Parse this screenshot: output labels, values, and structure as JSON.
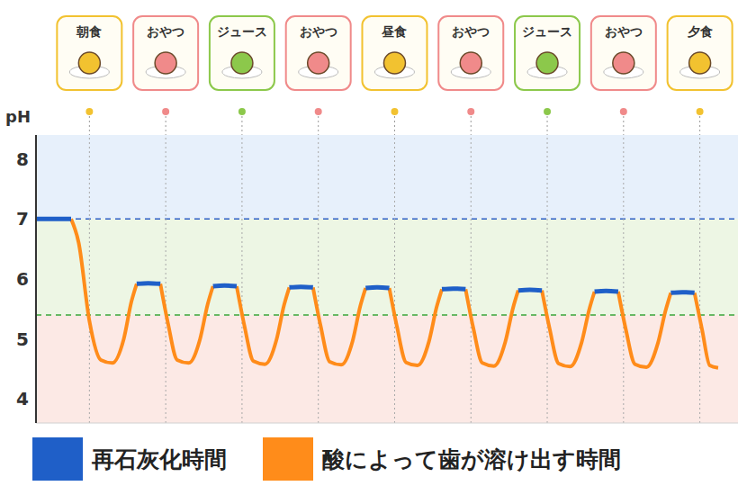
{
  "chart_data": {
    "type": "line",
    "y_label": "pH",
    "x": [
      0.3,
      0.5,
      0.76,
      0.86,
      1.0,
      1.15,
      1.3,
      1.45,
      1.55,
      1.62,
      1.77,
      1.93,
      2.03,
      2.15,
      2.3,
      2.45,
      2.55,
      2.62,
      2.77,
      2.93,
      3.03,
      3.15,
      3.3,
      3.45,
      3.55,
      3.62,
      3.77,
      3.93,
      4.03,
      4.15,
      4.3,
      4.45,
      4.55,
      4.62,
      4.77,
      4.93,
      5.03,
      5.15,
      5.3,
      5.45,
      5.55,
      5.62,
      5.77,
      5.93,
      6.03,
      6.15,
      6.3,
      6.45,
      6.55,
      6.62,
      6.77,
      6.93,
      7.03,
      7.15,
      7.3,
      7.45,
      7.55,
      7.62,
      7.77,
      7.93,
      8.03,
      8.15,
      8.3,
      8.45,
      8.55,
      8.62,
      8.77,
      8.93,
      9.03,
      9.13,
      9.24
    ],
    "xlim": [
      0.3,
      9.5
    ],
    "xticks": [],
    "ylim": [
      3.6,
      8.4
    ],
    "yticks": [
      4,
      5,
      6,
      7,
      8
    ],
    "tick_labels": "y",
    "grid": false,
    "series": [
      {
        "name": "再石灰化時間",
        "color": "#1f5fc8",
        "values": [
          7.0,
          7.0,
          7.0,
          null,
          null,
          null,
          null,
          null,
          null,
          5.92,
          5.93,
          5.92,
          null,
          null,
          null,
          null,
          null,
          5.88,
          5.89,
          5.88,
          null,
          null,
          null,
          null,
          null,
          5.86,
          5.87,
          5.86,
          null,
          null,
          null,
          null,
          null,
          5.85,
          5.86,
          5.85,
          null,
          null,
          null,
          null,
          null,
          5.83,
          5.84,
          5.83,
          null,
          null,
          null,
          null,
          null,
          5.81,
          5.82,
          5.81,
          null,
          null,
          null,
          null,
          null,
          5.79,
          5.8,
          5.79,
          null,
          null,
          null,
          null,
          null,
          5.77,
          5.78,
          5.77,
          null,
          null,
          null
        ]
      },
      {
        "name": "酸によって歯が溶け出す時間",
        "color": "#ff8c1a",
        "values": [
          null,
          null,
          7.0,
          6.6,
          5.3,
          4.65,
          4.6,
          5.0,
          5.62,
          5.92,
          null,
          5.92,
          5.26,
          4.65,
          4.6,
          5.0,
          5.58,
          5.88,
          null,
          5.88,
          5.23,
          4.63,
          4.58,
          4.98,
          5.56,
          5.86,
          null,
          5.86,
          5.22,
          4.62,
          4.57,
          4.97,
          5.55,
          5.85,
          null,
          5.85,
          5.21,
          4.61,
          4.56,
          4.96,
          5.53,
          5.83,
          null,
          5.83,
          5.19,
          4.6,
          4.55,
          4.95,
          5.51,
          5.81,
          null,
          5.81,
          5.18,
          4.59,
          4.54,
          4.94,
          5.49,
          5.79,
          null,
          5.79,
          5.16,
          4.58,
          4.53,
          4.93,
          5.47,
          5.77,
          null,
          5.77,
          5.15,
          4.56,
          4.52
        ]
      }
    ],
    "bands": [
      {
        "from": 7,
        "to": 8.4,
        "color": "#e7f0fb"
      },
      {
        "from": 5.4,
        "to": 7,
        "color": "#edf6e4"
      },
      {
        "from": 3.6,
        "to": 5.4,
        "color": "#fce9e5"
      }
    ],
    "reference_lines": [
      {
        "y": 7,
        "color": "#2f5fc4",
        "line_style": "dashed"
      },
      {
        "y": 5.4,
        "color": "#3aa53a",
        "line_style": "dashed"
      }
    ],
    "annotations": [
      {
        "x": 1,
        "label": "朝食",
        "color": "#f2c230"
      },
      {
        "x": 2,
        "label": "おやつ",
        "color": "#f08a8a"
      },
      {
        "x": 3,
        "label": "ジュース",
        "color": "#8cc84b"
      },
      {
        "x": 4,
        "label": "おやつ",
        "color": "#f08a8a"
      },
      {
        "x": 5,
        "label": "昼食",
        "color": "#f2c230"
      },
      {
        "x": 6,
        "label": "おやつ",
        "color": "#f08a8a"
      },
      {
        "x": 7,
        "label": "ジュース",
        "color": "#8cc84b"
      },
      {
        "x": 8,
        "label": "おやつ",
        "color": "#f08a8a"
      },
      {
        "x": 9,
        "label": "夕食",
        "color": "#f2c230"
      }
    ]
  }
}
